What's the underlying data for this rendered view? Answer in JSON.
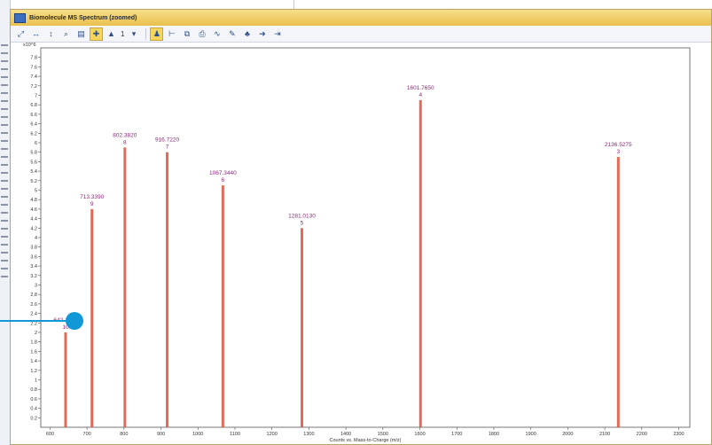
{
  "window": {
    "title": "Biomolecule MS Spectrum (zoomed)"
  },
  "toolbar": {
    "buttons": [
      {
        "icon": "autoscale-icon"
      },
      {
        "icon": "x-zoom-icon"
      },
      {
        "icon": "y-zoom-icon"
      },
      {
        "icon": "magnify-icon"
      },
      {
        "icon": "table-icon"
      },
      {
        "icon": "peak-label-icon"
      },
      {
        "icon": "overlay-icon"
      }
    ],
    "overlay_count": "1",
    "buttons2": [
      {
        "icon": "dropdown-icon"
      },
      {
        "icon": "person-icon"
      },
      {
        "icon": "range-icon"
      },
      {
        "icon": "copy-icon"
      },
      {
        "icon": "print-icon"
      },
      {
        "icon": "integrate-icon"
      },
      {
        "icon": "edit-icon"
      },
      {
        "icon": "tree-icon"
      },
      {
        "icon": "arrow-icon"
      },
      {
        "icon": "export-icon"
      }
    ]
  },
  "chart_data": {
    "type": "bar",
    "y_exponent_label": "x10^6",
    "xlabel": "Counts vs. Mass-to-Charge (m/z)",
    "ylabel": "",
    "xlim": [
      575,
      2330
    ],
    "ylim": [
      0,
      8.0
    ],
    "x_ticks": [
      600,
      700,
      800,
      900,
      1000,
      1100,
      1200,
      1300,
      1400,
      1500,
      1600,
      1700,
      1800,
      1900,
      2000,
      2100,
      2200,
      2300
    ],
    "y_ticks": [
      "0.2",
      "0.4",
      "0.6",
      "0.8",
      "1",
      "1.2",
      "1.4",
      "1.6",
      "1.8",
      "2",
      "2.2",
      "2.4",
      "2.6",
      "2.8",
      "3",
      "3.2",
      "3.4",
      "3.6",
      "3.8",
      "4",
      "4.2",
      "4.4",
      "4.6",
      "4.8",
      "5",
      "5.2",
      "5.4",
      "5.6",
      "5.8",
      "6",
      "6.2",
      "6.4",
      "6.6",
      "6.8",
      "7",
      "7.2",
      "7.4",
      "7.6",
      "7.8"
    ],
    "series": [
      {
        "values": [
          {
            "x": 642.1049,
            "y": 2.0,
            "label": "642.1049",
            "charge": "10"
          },
          {
            "x": 713.339,
            "y": 4.6,
            "label": "713.3390",
            "charge": "9"
          },
          {
            "x": 802.382,
            "y": 5.9,
            "label": "802.3820",
            "charge": "8"
          },
          {
            "x": 916.722,
            "y": 5.8,
            "label": "916.7220",
            "charge": "7"
          },
          {
            "x": 1067.344,
            "y": 5.1,
            "label": "1067.3440",
            "charge": "6"
          },
          {
            "x": 1281.013,
            "y": 4.2,
            "label": "1281.0130",
            "charge": "5"
          },
          {
            "x": 1601.765,
            "y": 6.9,
            "label": "1601.7650",
            "charge": "4"
          },
          {
            "x": 2136.5275,
            "y": 5.7,
            "label": "2136.5275",
            "charge": "3"
          }
        ]
      }
    ],
    "grid": false,
    "colors": {
      "peak": "#e05a46",
      "label": "#8b2a7a",
      "callout": "#1098d7"
    }
  }
}
